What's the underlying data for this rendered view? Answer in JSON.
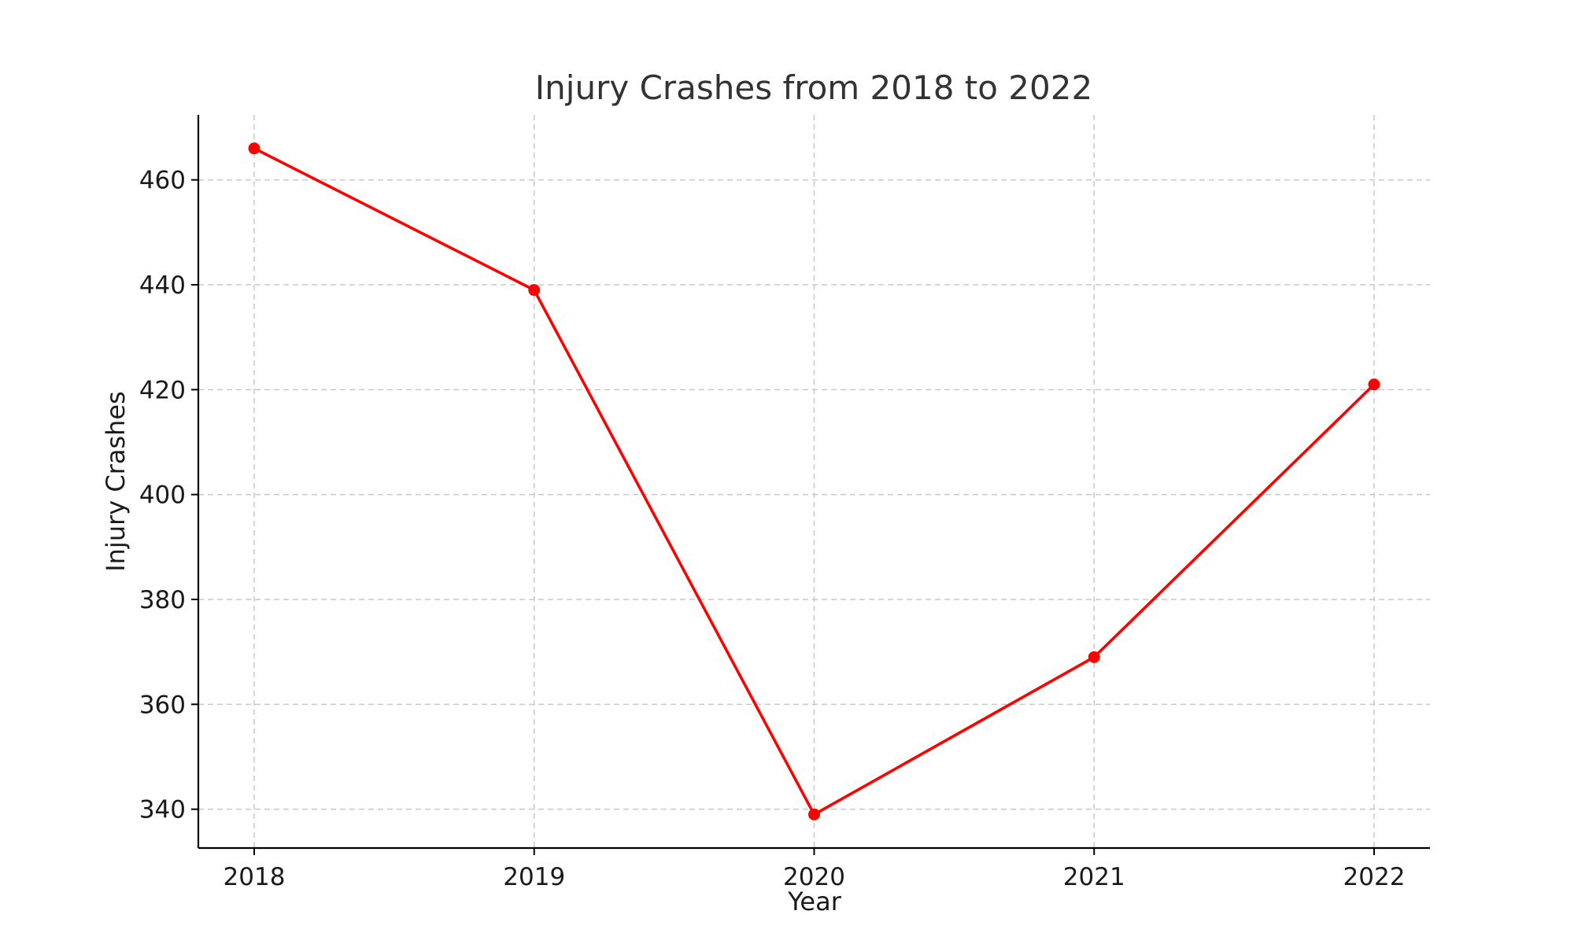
{
  "chart_data": {
    "type": "line",
    "title": "Injury Crashes from 2018 to 2022",
    "xlabel": "Year",
    "ylabel": "Injury Crashes",
    "categories": [
      "2018",
      "2019",
      "2020",
      "2021",
      "2022"
    ],
    "series": [
      {
        "values": [
          466,
          439,
          339,
          369,
          421
        ],
        "color": "#ff0000",
        "marker": "circle"
      }
    ],
    "yticks": [
      340,
      360,
      380,
      400,
      420,
      440,
      460
    ],
    "ylim": [
      332.6,
      472.4
    ],
    "grid": true,
    "grid_style": "dashed",
    "spines": [
      "left",
      "bottom"
    ]
  }
}
